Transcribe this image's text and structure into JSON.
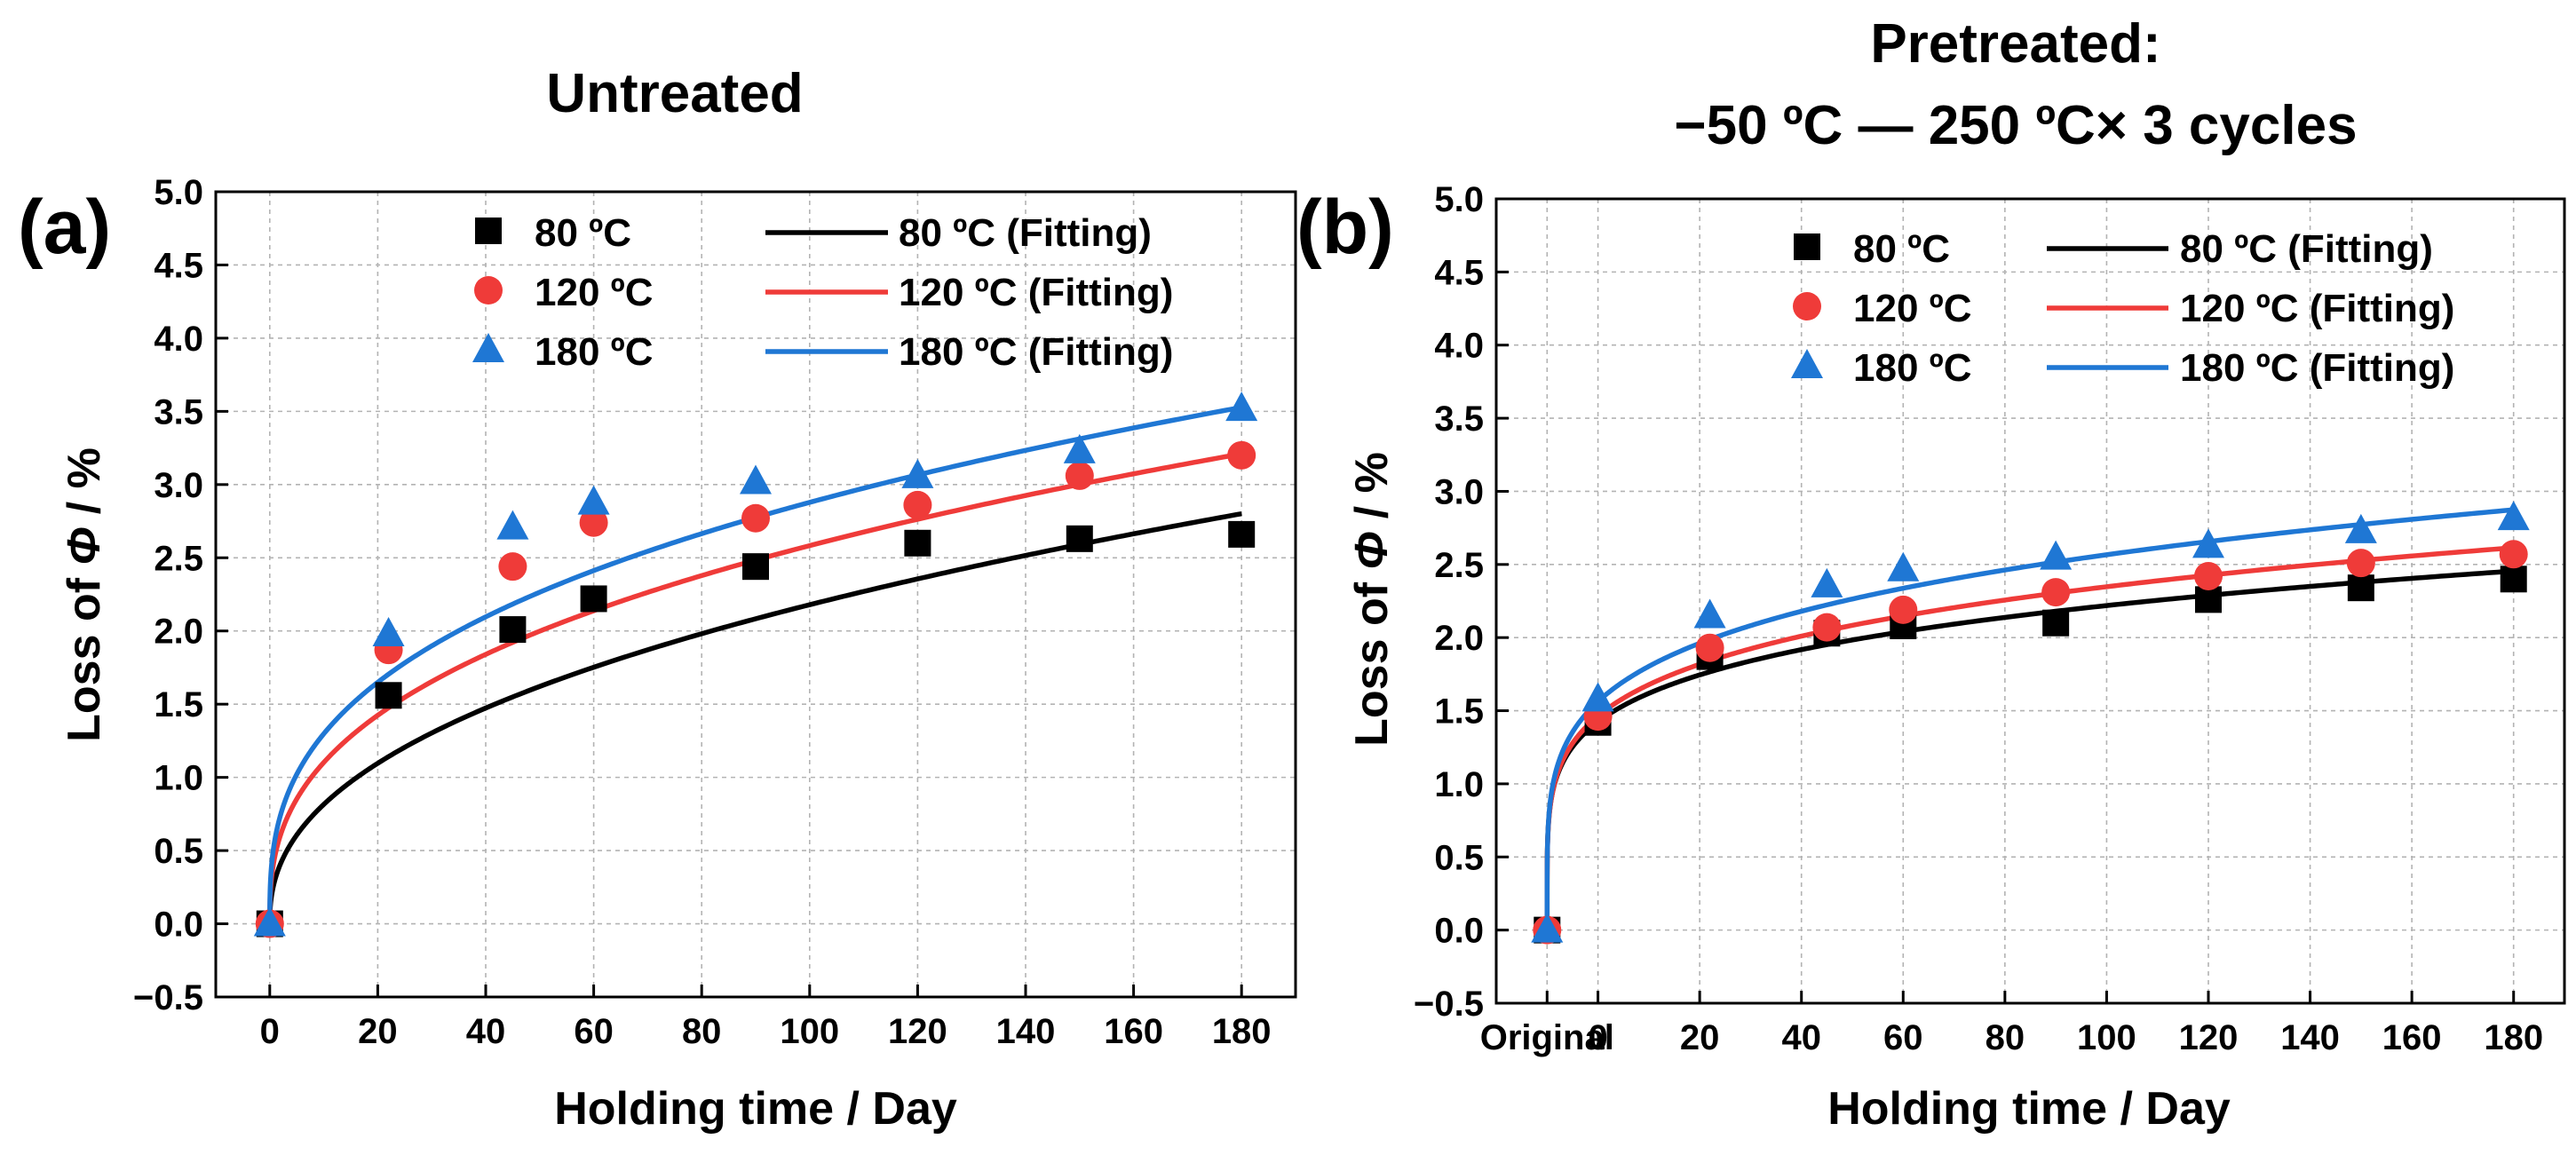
{
  "chart_data": [
    {
      "type": "scatter",
      "panel_label": "(a)",
      "title_lines": [
        "Untreated"
      ],
      "xlabel": "Holding time / Day",
      "ylabel_prefix": "Loss of ",
      "ylabel_symbol": "Φ",
      "ylabel_suffix": " / %",
      "xlim": [
        -10,
        190
      ],
      "ylim": [
        -0.5,
        5.0
      ],
      "xticks": [
        0,
        20,
        40,
        60,
        80,
        100,
        120,
        140,
        160,
        180
      ],
      "xtick_labels": [
        "0",
        "20",
        "40",
        "60",
        "80",
        "100",
        "120",
        "140",
        "160",
        "180"
      ],
      "yticks": [
        -0.5,
        0.0,
        0.5,
        1.0,
        1.5,
        2.0,
        2.5,
        3.0,
        3.5,
        4.0,
        4.5,
        5.0
      ],
      "ytick_labels": [
        "−0.5",
        "0.0",
        "0.5",
        "1.0",
        "1.5",
        "2.0",
        "2.5",
        "3.0",
        "3.5",
        "4.0",
        "4.5",
        "5.0"
      ],
      "grid": true,
      "legend_position": "top-right",
      "series": [
        {
          "name": "80 ºC",
          "fit_name": "80 ºC (Fitting)",
          "marker": "square",
          "color": "#000000",
          "x": [
            0,
            22,
            45,
            60,
            90,
            120,
            150,
            180
          ],
          "y": [
            0.0,
            1.56,
            2.01,
            2.22,
            2.44,
            2.6,
            2.63,
            2.66
          ],
          "fit": {
            "a": 0.305,
            "b": 0.427
          }
        },
        {
          "name": "120 ºC",
          "fit_name": "120 ºC (Fitting)",
          "marker": "circle",
          "color": "#ef3b39",
          "x": [
            0,
            22,
            45,
            60,
            90,
            120,
            150,
            180
          ],
          "y": [
            0.0,
            1.87,
            2.44,
            2.74,
            2.77,
            2.86,
            3.06,
            3.2
          ],
          "fit": {
            "a": 0.47,
            "b": 0.37
          }
        },
        {
          "name": "180 ºC",
          "fit_name": "180 ºC (Fitting)",
          "marker": "triangle",
          "color": "#1f77d4",
          "x": [
            0,
            22,
            45,
            60,
            90,
            120,
            150,
            180
          ],
          "y": [
            0.0,
            1.98,
            2.71,
            2.88,
            3.02,
            3.06,
            3.23,
            3.52
          ],
          "fit": {
            "a": 0.585,
            "b": 0.346
          }
        }
      ]
    },
    {
      "type": "scatter",
      "panel_label": "(b)",
      "title_lines": [
        "Pretreated:",
        "−50 ºC — 250 ºC× 3 cycles"
      ],
      "xlabel": "Holding time / Day",
      "ylabel_prefix": "Loss of ",
      "ylabel_symbol": "Φ",
      "ylabel_suffix": " / %",
      "xlim": [
        -20,
        190
      ],
      "ylim": [
        -0.5,
        5.0
      ],
      "xticks": [
        -10,
        0,
        20,
        40,
        60,
        80,
        100,
        120,
        140,
        160,
        180
      ],
      "xtick_labels": [
        "Original",
        "0",
        "20",
        "40",
        "60",
        "80",
        "100",
        "120",
        "140",
        "160",
        "180"
      ],
      "yticks": [
        -0.5,
        0.0,
        0.5,
        1.0,
        1.5,
        2.0,
        2.5,
        3.0,
        3.5,
        4.0,
        4.5,
        5.0
      ],
      "ytick_labels": [
        "−0.5",
        "0.0",
        "0.5",
        "1.0",
        "1.5",
        "2.0",
        "2.5",
        "3.0",
        "3.5",
        "4.0",
        "4.5",
        "5.0"
      ],
      "grid": true,
      "legend_position": "top-right",
      "series": [
        {
          "name": "80 ºC",
          "fit_name": "80 ºC (Fitting)",
          "marker": "square",
          "color": "#000000",
          "x": [
            -10,
            0,
            22,
            45,
            60,
            90,
            120,
            150,
            180
          ],
          "y": [
            0.0,
            1.42,
            1.87,
            2.03,
            2.08,
            2.1,
            2.26,
            2.34,
            2.4
          ],
          "fit": {
            "a": 0.93,
            "b": 0.185,
            "x0": -10
          }
        },
        {
          "name": "120 ºC",
          "fit_name": "120 ºC (Fitting)",
          "marker": "circle",
          "color": "#ef3b39",
          "x": [
            -10,
            0,
            22,
            45,
            60,
            90,
            120,
            150,
            180
          ],
          "y": [
            0.0,
            1.46,
            1.93,
            2.07,
            2.19,
            2.31,
            2.42,
            2.51,
            2.57
          ],
          "fit": {
            "a": 0.93,
            "b": 0.197,
            "x0": -10
          }
        },
        {
          "name": "180 ºC",
          "fit_name": "180 ºC (Fitting)",
          "marker": "triangle",
          "color": "#1f77d4",
          "x": [
            -10,
            0,
            22,
            45,
            60,
            90,
            120,
            150,
            180
          ],
          "y": [
            0.0,
            1.58,
            2.15,
            2.36,
            2.47,
            2.55,
            2.63,
            2.73,
            2.82
          ],
          "fit": {
            "a": 0.97,
            "b": 0.207,
            "x0": -10
          }
        }
      ]
    }
  ]
}
